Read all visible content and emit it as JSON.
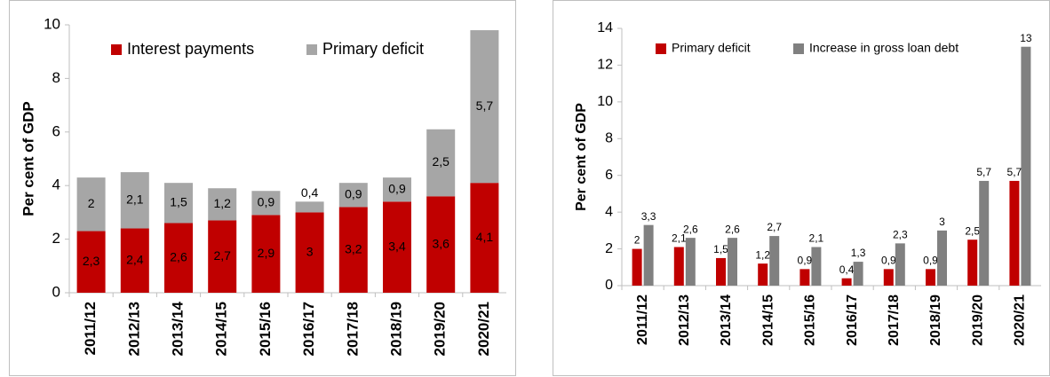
{
  "chart_data": [
    {
      "type": "bar",
      "stacked": true,
      "ylabel": "Per cent of GDP",
      "categories": [
        "2011/12",
        "2012/13",
        "2013/14",
        "2014/15",
        "2015/16",
        "2016/17",
        "2017/18",
        "2018/19",
        "2019/20",
        "2020/21"
      ],
      "series": [
        {
          "name": "Interest payments",
          "color": "#c00000",
          "values": [
            2.3,
            2.4,
            2.6,
            2.7,
            2.9,
            3,
            3.2,
            3.4,
            3.6,
            4.1
          ],
          "value_labels": [
            "2,3",
            "2,4",
            "2,6",
            "2,7",
            "2,9",
            "3",
            "3,2",
            "3,4",
            "3,6",
            "4,1"
          ]
        },
        {
          "name": "Primary deficit",
          "color": "#a6a6a6",
          "values": [
            2,
            2.1,
            1.5,
            1.2,
            0.9,
            0.4,
            0.9,
            0.9,
            2.5,
            5.7
          ],
          "value_labels": [
            "2",
            "2,1",
            "1,5",
            "1,2",
            "0,9",
            "0,4",
            "0,9",
            "0,9",
            "2,5",
            "5,7"
          ]
        }
      ],
      "ylim": [
        0,
        10
      ],
      "yticks": [
        0,
        2,
        4,
        6,
        8,
        10
      ],
      "grid": false,
      "legend": "top"
    },
    {
      "type": "bar",
      "stacked": false,
      "ylabel": "Per cent of GDP",
      "categories": [
        "2011/12",
        "2012/13",
        "2013/14",
        "2014/15",
        "2015/16",
        "2016/17",
        "2017/18",
        "2018/19",
        "2019/20",
        "2020/21"
      ],
      "series": [
        {
          "name": "Primary deficit",
          "color": "#c00000",
          "values": [
            2,
            2.1,
            1.5,
            1.2,
            0.9,
            0.4,
            0.9,
            0.9,
            2.5,
            5.7
          ],
          "value_labels": [
            "2",
            "2,1",
            "1,5",
            "1,2",
            "0,9",
            "0,4",
            "0,9",
            "0,9",
            "2,5",
            "5,7"
          ]
        },
        {
          "name": "Increase in gross loan debt",
          "color": "#808080",
          "values": [
            3.3,
            2.6,
            2.6,
            2.7,
            2.1,
            1.3,
            2.3,
            3,
            5.7,
            13
          ],
          "value_labels": [
            "3,3",
            "2,6",
            "2,6",
            "2,7",
            "2,1",
            "1,3",
            "2,3",
            "3",
            "5,7",
            "13"
          ]
        }
      ],
      "ylim": [
        0,
        14
      ],
      "yticks": [
        0,
        2,
        4,
        6,
        8,
        10,
        12,
        14
      ],
      "grid": false,
      "legend": "top"
    }
  ]
}
